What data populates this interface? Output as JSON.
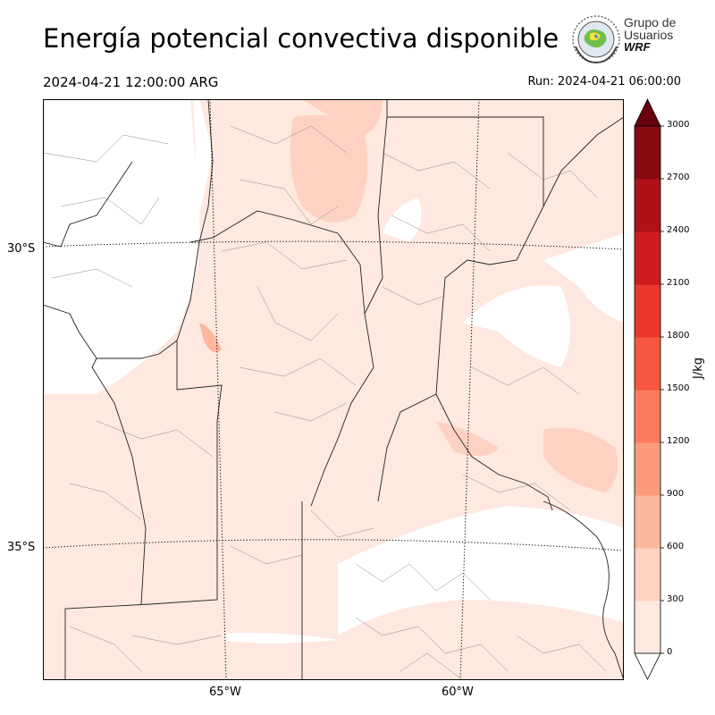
{
  "title": "Energía potencial convectiva disponible",
  "valid_time": "2024-04-21 12:00:00 ARG",
  "run_time": "Run: 2024-04-21 06:00:00",
  "logo": {
    "line1": "Grupo de",
    "line2": "Usuarios",
    "line3": "WRF"
  },
  "map": {
    "lat_labels": [
      "30°S",
      "35°S"
    ],
    "lon_labels": [
      "65°W",
      "60°W"
    ]
  },
  "colorbar": {
    "unit": "J/kg",
    "ticks": [
      "0",
      "300",
      "600",
      "900",
      "1200",
      "1500",
      "1800",
      "2100",
      "2400",
      "2700",
      "3000"
    ],
    "colors": [
      "#fee8df",
      "#fdd2c2",
      "#fcb79c",
      "#fc9b7b",
      "#fb7c5c",
      "#f6573f",
      "#ea372a",
      "#cf1b1d",
      "#ae1217",
      "#850a12",
      "#67000d"
    ]
  }
}
